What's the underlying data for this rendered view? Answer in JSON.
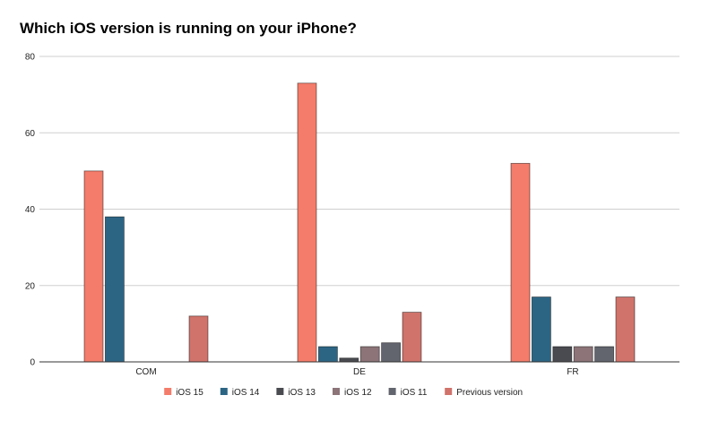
{
  "chart_data": {
    "type": "bar",
    "title": "Which iOS version is running on your iPhone?",
    "xlabel": "",
    "ylabel": "",
    "categories": [
      "COM",
      "DE",
      "FR"
    ],
    "ylim": [
      0,
      80
    ],
    "yticks": [
      "0",
      "20",
      "40",
      "60",
      "80"
    ],
    "grid": true,
    "legend_position": "bottom",
    "series": [
      {
        "name": "iOS 15",
        "color": "#f47c6a",
        "values": [
          50,
          73,
          52
        ]
      },
      {
        "name": "iOS 14",
        "color": "#2c6584",
        "values": [
          38,
          4,
          17
        ]
      },
      {
        "name": "iOS 13",
        "color": "#494b50",
        "values": [
          0,
          1,
          4
        ]
      },
      {
        "name": "iOS 12",
        "color": "#8c7479",
        "values": [
          0,
          4,
          4
        ]
      },
      {
        "name": "iOS 11",
        "color": "#62646e",
        "values": [
          0,
          5,
          4
        ]
      },
      {
        "name": "Previous version",
        "color": "#d0736b",
        "values": [
          12,
          13,
          17
        ]
      }
    ]
  }
}
